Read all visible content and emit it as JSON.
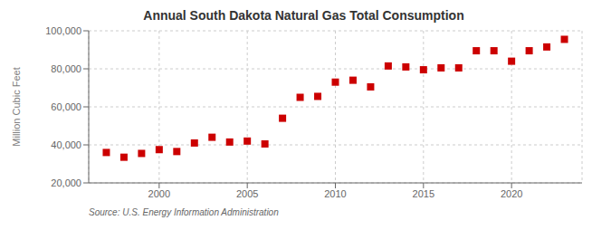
{
  "chart_data": {
    "type": "scatter",
    "title": "Annual South Dakota Natural Gas Total Consumption",
    "y_label": "Million Cubic Feet",
    "annotations": [
      "Source: U.S. Energy Information Administration"
    ],
    "x": [
      1997,
      1998,
      1999,
      2000,
      2001,
      2002,
      2003,
      2004,
      2005,
      2006,
      2007,
      2008,
      2009,
      2010,
      2011,
      2012,
      2013,
      2014,
      2015,
      2016,
      2017,
      2018,
      2019,
      2020,
      2021,
      2022,
      2023
    ],
    "values": [
      36000,
      33500,
      35500,
      37500,
      36500,
      41000,
      44000,
      41500,
      42000,
      40500,
      54000,
      65000,
      65500,
      73000,
      74000,
      70500,
      81500,
      81000,
      79500,
      80500,
      80500,
      89500,
      89500,
      84000,
      89500,
      91500,
      95500
    ],
    "color": "#cc0000",
    "marker": "square",
    "grid": true,
    "xlim": [
      1996,
      2024
    ],
    "xticks": [
      2000,
      2005,
      2010,
      2015,
      2020
    ],
    "ylim": [
      20000,
      100000
    ],
    "yticks": [
      {
        "value": 20000,
        "label": "20,000"
      },
      {
        "value": 40000,
        "label": "40,000"
      },
      {
        "value": 60000,
        "label": "60,000"
      },
      {
        "value": 80000,
        "label": "80,000"
      },
      {
        "value": 100000,
        "label": "100,000"
      }
    ]
  }
}
